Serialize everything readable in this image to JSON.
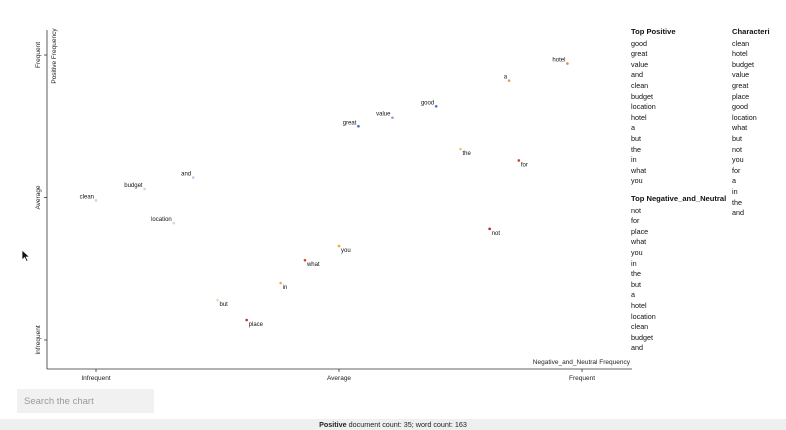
{
  "chart_data": {
    "type": "scatter",
    "xlabel": "Negative_and_Neutral Frequency",
    "ylabel": "Positive Frequency",
    "x_ticks": [
      "Infrequent",
      "Average",
      "Frequent"
    ],
    "y_ticks": [
      "Infrequent",
      "Average",
      "Frequent"
    ],
    "xlim": [
      0,
      1
    ],
    "ylim": [
      0,
      1
    ],
    "points": [
      {
        "term": "hotel",
        "x": 0.97,
        "y": 0.97,
        "color": "#e08a3c"
      },
      {
        "term": "a",
        "x": 0.85,
        "y": 0.91,
        "color": "#e0a050"
      },
      {
        "term": "good",
        "x": 0.7,
        "y": 0.82,
        "color": "#4a6fd1"
      },
      {
        "term": "value",
        "x": 0.61,
        "y": 0.78,
        "color": "#8fa6d8"
      },
      {
        "term": "great",
        "x": 0.54,
        "y": 0.75,
        "color": "#3a63cc"
      },
      {
        "term": "the",
        "x": 0.75,
        "y": 0.67,
        "color": "#f0c36a"
      },
      {
        "term": "for",
        "x": 0.87,
        "y": 0.63,
        "color": "#d43d2c"
      },
      {
        "term": "and",
        "x": 0.2,
        "y": 0.57,
        "color": "#b8c8e8"
      },
      {
        "term": "budget",
        "x": 0.1,
        "y": 0.53,
        "color": "#c8d4ee"
      },
      {
        "term": "clean",
        "x": 0.0,
        "y": 0.49,
        "color": "#c8d4ee"
      },
      {
        "term": "location",
        "x": 0.16,
        "y": 0.41,
        "color": "#d6d6d6"
      },
      {
        "term": "not",
        "x": 0.81,
        "y": 0.39,
        "color": "#b8262a"
      },
      {
        "term": "you",
        "x": 0.5,
        "y": 0.33,
        "color": "#f2a93b"
      },
      {
        "term": "what",
        "x": 0.43,
        "y": 0.28,
        "color": "#d9452c"
      },
      {
        "term": "in",
        "x": 0.38,
        "y": 0.2,
        "color": "#f4a45c"
      },
      {
        "term": "but",
        "x": 0.25,
        "y": 0.14,
        "color": "#f0d8b8"
      },
      {
        "term": "place",
        "x": 0.31,
        "y": 0.07,
        "color": "#d42a1e"
      }
    ]
  },
  "top_positive": {
    "title": "Top Positive",
    "terms": [
      "good",
      "great",
      "value",
      "and",
      "clean",
      "budget",
      "location",
      "hotel",
      "a",
      "but",
      "the",
      "in",
      "what",
      "you"
    ]
  },
  "top_negative": {
    "title": "Top Negative_and_Neutral",
    "terms": [
      "not",
      "for",
      "place",
      "what",
      "you",
      "in",
      "the",
      "but",
      "a",
      "hotel",
      "location",
      "clean",
      "budget",
      "and"
    ]
  },
  "characteristic": {
    "title": "Characteri",
    "terms": [
      "clean",
      "hotel",
      "budget",
      "value",
      "great",
      "place",
      "good",
      "location",
      "what",
      "but",
      "not",
      "you",
      "for",
      "a",
      "in",
      "the",
      "and"
    ]
  },
  "search": {
    "placeholder": "Search the chart"
  },
  "footer": {
    "category": "Positive",
    "rest": " document count: 35; word count: 163"
  }
}
